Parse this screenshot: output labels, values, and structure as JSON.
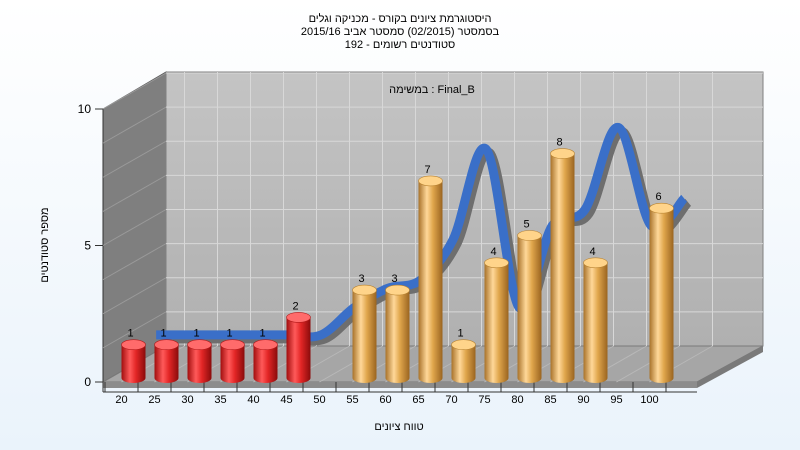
{
  "chart_data": {
    "type": "bar",
    "title_lines": [
      "היסטוגרמת ציונים בקורס - מכניקה וגלים",
      "בסמסטר (02/2015) סמסטר אביב 2015/16",
      "192 - סטודנטים רשומים"
    ],
    "annotation": "במשימה : Final_B",
    "xlabel": "טווח ציונים",
    "ylabel": "מספר סטודנטים",
    "ylim": [
      0,
      10
    ],
    "y_ticks": [
      "0",
      "5",
      "10"
    ],
    "x_ticks": [
      "20",
      "25",
      "30",
      "35",
      "40",
      "45",
      "50",
      "55",
      "60",
      "65",
      "70",
      "75",
      "80",
      "85",
      "90",
      "95",
      "100"
    ],
    "series": [
      {
        "kind": "bars",
        "x": [
          20,
          25,
          30,
          35,
          40,
          45,
          55,
          60,
          65,
          70,
          75,
          80,
          85,
          90,
          100
        ],
        "values": [
          1,
          1,
          1,
          1,
          1,
          2,
          3,
          3,
          7,
          1,
          4,
          5,
          8,
          4,
          6
        ],
        "value_labels": [
          "1",
          "1",
          "1",
          "1",
          "1",
          "2",
          "3",
          "3",
          "7",
          "1",
          "4",
          "5",
          "8",
          "4",
          "6"
        ],
        "colors": [
          "#e32626",
          "#e32626",
          "#e32626",
          "#e32626",
          "#e32626",
          "#e32626",
          "#e0a64c",
          "#e0a64c",
          "#e0a64c",
          "#e0a64c",
          "#e0a64c",
          "#e0a64c",
          "#e0a64c",
          "#e0a64c",
          "#e0a64c"
        ]
      },
      {
        "kind": "ribbon",
        "x": [
          20,
          25,
          30,
          35,
          40,
          45,
          50,
          55,
          60,
          65,
          70,
          75,
          80,
          85,
          90,
          95,
          100
        ],
        "values": [
          1,
          1,
          1,
          1,
          1,
          1,
          2,
          2.7,
          3,
          4.5,
          7.8,
          2,
          5,
          5.6,
          8.6,
          5,
          6
        ],
        "color": "#3a6fc8"
      }
    ],
    "colors": {
      "fail": "#e32626",
      "pass": "#e0a64c",
      "ribbon": "#3a6fc8",
      "wall": "#b9b9b9",
      "floor": "#a6a6a6"
    },
    "grid": true,
    "projection": "3d"
  }
}
